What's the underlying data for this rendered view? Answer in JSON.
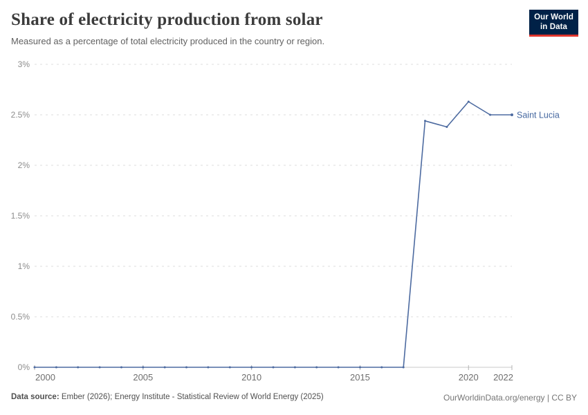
{
  "header": {
    "title": "Share of electricity production from solar",
    "subtitle": "Measured as a percentage of total electricity produced in the country or region.",
    "logo": {
      "line1": "Our World",
      "line2": "in Data",
      "bg_color": "#002147",
      "accent_color": "#e0352c"
    }
  },
  "chart_data": {
    "type": "line",
    "title": "Share of electricity production from solar",
    "xlabel": "",
    "ylabel": "",
    "x": [
      2000,
      2001,
      2002,
      2003,
      2004,
      2005,
      2006,
      2007,
      2008,
      2009,
      2010,
      2011,
      2012,
      2013,
      2014,
      2015,
      2016,
      2017,
      2018,
      2019,
      2020,
      2021,
      2022
    ],
    "series": [
      {
        "name": "Saint Lucia",
        "values": [
          0,
          0,
          0,
          0,
          0,
          0,
          0,
          0,
          0,
          0,
          0,
          0,
          0,
          0,
          0,
          0,
          0,
          0,
          2.44,
          2.38,
          2.63,
          2.5,
          2.5
        ]
      }
    ],
    "xlim": [
      2000,
      2022
    ],
    "ylim": [
      0,
      3
    ],
    "yticks": [
      {
        "value": 0,
        "label": "0%"
      },
      {
        "value": 0.5,
        "label": "0.5%"
      },
      {
        "value": 1,
        "label": "1%"
      },
      {
        "value": 1.5,
        "label": "1.5%"
      },
      {
        "value": 2,
        "label": "2%"
      },
      {
        "value": 2.5,
        "label": "2.5%"
      },
      {
        "value": 3,
        "label": "3%"
      }
    ],
    "xticks": [
      {
        "value": 2000,
        "label": "2000"
      },
      {
        "value": 2005,
        "label": "2005"
      },
      {
        "value": 2010,
        "label": "2010"
      },
      {
        "value": 2015,
        "label": "2015"
      },
      {
        "value": 2020,
        "label": "2020"
      },
      {
        "value": 2022,
        "label": "2022"
      }
    ],
    "grid": "horizontal-dashed",
    "legend": "end-of-line-label",
    "colors": {
      "line": "#4C6AA0",
      "series_label": "#4668a0",
      "gridline": "#dedede",
      "axis_line": "#c8c8c8",
      "tick_mark": "#b3b3b3",
      "y_tick_label": "#8c8c8c",
      "x_tick_label": "#6e6e6e"
    }
  },
  "footer": {
    "data_source_label": "Data source:",
    "data_source_text": " Ember (2026); Energy Institute - Statistical Review of World Energy (2025)",
    "credit": "OurWorldinData.org/energy | CC BY"
  }
}
